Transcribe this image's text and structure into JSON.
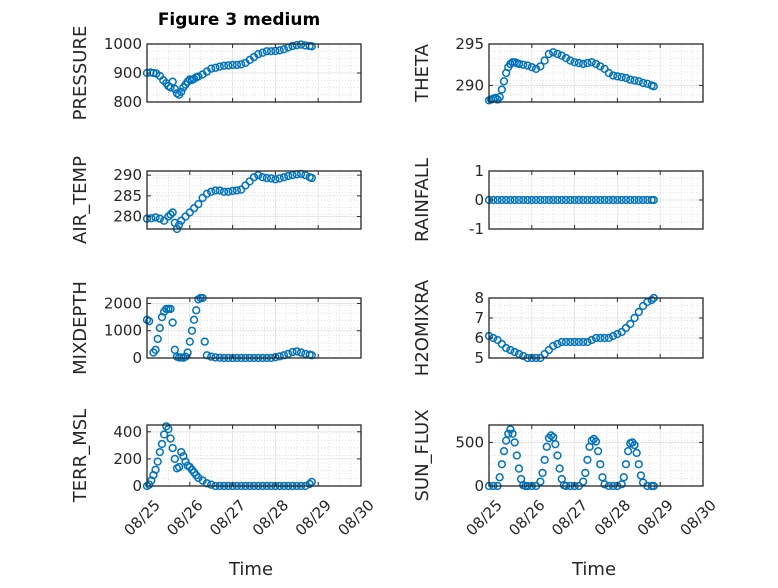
{
  "figure": {
    "title": "Figure 3 medium",
    "xlabel": "Time",
    "marker_color": "#0072BD"
  },
  "chart_data": [
    {
      "type": "scatter",
      "name": "PRESSURE",
      "ylabel": "PRESSURE",
      "ylim": [
        800,
        1000
      ],
      "yticks": [
        800,
        900,
        1000
      ],
      "ytick_labels": [
        "800",
        "900",
        "1000"
      ],
      "xlim": [
        0,
        5
      ],
      "xticks": [
        0,
        1,
        2,
        3,
        4,
        5
      ],
      "xtick_labels": [
        "08/25",
        "08/26",
        "08/27",
        "08/28",
        "08/29",
        "08/30"
      ],
      "grid": true,
      "x": [
        0.0,
        0.08,
        0.15,
        0.22,
        0.3,
        0.38,
        0.45,
        0.5,
        0.55,
        0.6,
        0.65,
        0.7,
        0.75,
        0.8,
        0.85,
        0.9,
        0.95,
        1.0,
        1.05,
        1.1,
        1.15,
        1.2,
        1.3,
        1.4,
        1.5,
        1.6,
        1.7,
        1.8,
        1.9,
        2.0,
        2.1,
        2.2,
        2.3,
        2.4,
        2.5,
        2.6,
        2.7,
        2.8,
        2.9,
        3.0,
        3.1,
        3.2,
        3.3,
        3.4,
        3.5,
        3.6,
        3.7,
        3.8,
        3.85
      ],
      "y": [
        900,
        902,
        900,
        898,
        890,
        875,
        865,
        855,
        850,
        870,
        845,
        830,
        825,
        835,
        850,
        860,
        870,
        878,
        876,
        880,
        885,
        888,
        895,
        905,
        915,
        918,
        922,
        925,
        926,
        928,
        928,
        930,
        935,
        945,
        955,
        965,
        970,
        975,
        975,
        976,
        978,
        982,
        988,
        993,
        996,
        998,
        995,
        993,
        992
      ]
    },
    {
      "type": "scatter",
      "name": "THETA",
      "ylabel": "THETA",
      "ylim": [
        288,
        295
      ],
      "yticks": [
        290,
        295
      ],
      "ytick_labels": [
        "290",
        "295"
      ],
      "xlim": [
        0,
        5
      ],
      "xticks": [
        0,
        1,
        2,
        3,
        4,
        5
      ],
      "xtick_labels": [
        "08/25",
        "08/26",
        "08/27",
        "08/28",
        "08/29",
        "08/30"
      ],
      "grid": true,
      "x": [
        0.0,
        0.05,
        0.1,
        0.15,
        0.2,
        0.25,
        0.3,
        0.35,
        0.4,
        0.45,
        0.5,
        0.55,
        0.6,
        0.65,
        0.7,
        0.8,
        0.9,
        1.0,
        1.1,
        1.2,
        1.3,
        1.4,
        1.5,
        1.6,
        1.7,
        1.8,
        1.9,
        2.0,
        2.1,
        2.2,
        2.3,
        2.4,
        2.5,
        2.6,
        2.7,
        2.8,
        2.9,
        3.0,
        3.1,
        3.2,
        3.3,
        3.4,
        3.5,
        3.6,
        3.7,
        3.8,
        3.85
      ],
      "y": [
        288.2,
        288.3,
        288.4,
        288.5,
        288.3,
        288.6,
        289.5,
        290.5,
        291.5,
        292.2,
        292.6,
        292.8,
        292.8,
        292.7,
        292.6,
        292.5,
        292.4,
        292.2,
        292.0,
        292.3,
        293.0,
        293.8,
        294.0,
        293.8,
        293.6,
        293.3,
        293.0,
        292.8,
        292.7,
        292.6,
        292.7,
        292.8,
        292.6,
        292.3,
        292.0,
        291.5,
        291.2,
        291.1,
        291.0,
        290.9,
        290.7,
        290.6,
        290.5,
        290.3,
        290.2,
        290.0,
        289.9
      ]
    },
    {
      "type": "scatter",
      "name": "AIR_TEMP",
      "ylabel": "AIR_TEMP",
      "ylim": [
        277,
        291
      ],
      "yticks": [
        280,
        285,
        290
      ],
      "ytick_labels": [
        "280",
        "285",
        "290"
      ],
      "xlim": [
        0,
        5
      ],
      "xticks": [
        0,
        1,
        2,
        3,
        4,
        5
      ],
      "xtick_labels": [
        "08/25",
        "08/26",
        "08/27",
        "08/28",
        "08/29",
        "08/30"
      ],
      "grid": true,
      "x": [
        0.0,
        0.1,
        0.2,
        0.3,
        0.4,
        0.5,
        0.55,
        0.6,
        0.65,
        0.7,
        0.75,
        0.8,
        0.9,
        1.0,
        1.1,
        1.2,
        1.3,
        1.4,
        1.5,
        1.6,
        1.7,
        1.8,
        1.9,
        2.0,
        2.1,
        2.2,
        2.3,
        2.4,
        2.5,
        2.6,
        2.7,
        2.8,
        2.9,
        3.0,
        3.1,
        3.2,
        3.3,
        3.4,
        3.5,
        3.6,
        3.7,
        3.8,
        3.85
      ],
      "y": [
        279.5,
        279.6,
        279.8,
        279.5,
        279.0,
        280.0,
        280.5,
        281.0,
        278.5,
        277.0,
        278.0,
        279.0,
        280.0,
        281.0,
        282.0,
        283.0,
        284.5,
        285.5,
        286.0,
        286.3,
        286.3,
        286.0,
        286.0,
        286.2,
        286.3,
        286.5,
        287.5,
        288.5,
        289.5,
        290.0,
        289.5,
        289.3,
        289.2,
        289.0,
        289.2,
        289.5,
        289.8,
        290.0,
        290.2,
        290.3,
        290.0,
        289.5,
        289.3
      ]
    },
    {
      "type": "scatter",
      "name": "RAINFALL",
      "ylabel": "RAINFALL",
      "ylim": [
        -1,
        1
      ],
      "yticks": [
        -1,
        0,
        1
      ],
      "ytick_labels": [
        "-1",
        "0",
        "1"
      ],
      "xlim": [
        0,
        5
      ],
      "xticks": [
        0,
        1,
        2,
        3,
        4,
        5
      ],
      "xtick_labels": [
        "08/25",
        "08/26",
        "08/27",
        "08/28",
        "08/29",
        "08/30"
      ],
      "grid": true,
      "x": [
        0.0,
        0.1,
        0.2,
        0.3,
        0.4,
        0.5,
        0.6,
        0.7,
        0.8,
        0.9,
        1.0,
        1.1,
        1.2,
        1.3,
        1.4,
        1.5,
        1.6,
        1.7,
        1.8,
        1.9,
        2.0,
        2.1,
        2.2,
        2.3,
        2.4,
        2.5,
        2.6,
        2.7,
        2.8,
        2.9,
        3.0,
        3.1,
        3.2,
        3.3,
        3.4,
        3.5,
        3.6,
        3.7,
        3.8,
        3.85
      ],
      "y": [
        0,
        0,
        0,
        0,
        0,
        0,
        0,
        0,
        0,
        0,
        0,
        0,
        0,
        0,
        0,
        0,
        0,
        0,
        0,
        0,
        0,
        0,
        0,
        0,
        0,
        0,
        0,
        0,
        0,
        0,
        0,
        0,
        0,
        0,
        0,
        0,
        0,
        0,
        0,
        0
      ]
    },
    {
      "type": "scatter",
      "name": "MIXDEPTH",
      "ylabel": "MIXDEPTH",
      "ylim": [
        0,
        2200
      ],
      "yticks": [
        0,
        1000,
        2000
      ],
      "ytick_labels": [
        "0",
        "1000",
        "2000"
      ],
      "xlim": [
        0,
        5
      ],
      "xticks": [
        0,
        1,
        2,
        3,
        4,
        5
      ],
      "xtick_labels": [
        "08/25",
        "08/26",
        "08/27",
        "08/28",
        "08/29",
        "08/30"
      ],
      "grid": true,
      "x": [
        0.0,
        0.05,
        0.15,
        0.2,
        0.25,
        0.3,
        0.35,
        0.4,
        0.45,
        0.5,
        0.55,
        0.6,
        0.65,
        0.7,
        0.75,
        0.8,
        0.85,
        0.9,
        0.95,
        1.0,
        1.05,
        1.1,
        1.15,
        1.2,
        1.25,
        1.3,
        1.35,
        1.4,
        1.5,
        1.6,
        1.7,
        1.8,
        1.9,
        2.0,
        2.1,
        2.2,
        2.3,
        2.4,
        2.5,
        2.6,
        2.7,
        2.8,
        2.9,
        3.0,
        3.1,
        3.2,
        3.3,
        3.4,
        3.5,
        3.6,
        3.7,
        3.8,
        3.85
      ],
      "y": [
        1400,
        1350,
        200,
        300,
        700,
        1100,
        1500,
        1700,
        1800,
        1800,
        1800,
        1300,
        300,
        50,
        20,
        20,
        10,
        50,
        200,
        600,
        1000,
        1400,
        1750,
        2150,
        2200,
        2200,
        600,
        100,
        50,
        20,
        10,
        0,
        0,
        0,
        0,
        0,
        0,
        0,
        0,
        0,
        0,
        0,
        0,
        30,
        60,
        100,
        150,
        220,
        240,
        200,
        150,
        120,
        100
      ]
    },
    {
      "type": "scatter",
      "name": "H2OMIXRA",
      "ylabel": "H2OMIXRA",
      "ylim": [
        5,
        8
      ],
      "yticks": [
        5,
        6,
        7,
        8
      ],
      "ytick_labels": [
        "5",
        "6",
        "7",
        "8"
      ],
      "xlim": [
        0,
        5
      ],
      "xticks": [
        0,
        1,
        2,
        3,
        4,
        5
      ],
      "xtick_labels": [
        "08/25",
        "08/26",
        "08/27",
        "08/28",
        "08/29",
        "08/30"
      ],
      "grid": true,
      "x": [
        0.0,
        0.1,
        0.2,
        0.3,
        0.4,
        0.5,
        0.6,
        0.7,
        0.8,
        0.9,
        1.0,
        1.1,
        1.2,
        1.3,
        1.4,
        1.5,
        1.6,
        1.7,
        1.8,
        1.9,
        2.0,
        2.1,
        2.2,
        2.3,
        2.4,
        2.5,
        2.6,
        2.7,
        2.8,
        2.9,
        3.0,
        3.1,
        3.2,
        3.3,
        3.4,
        3.5,
        3.6,
        3.7,
        3.8,
        3.85
      ],
      "y": [
        6.1,
        6.0,
        5.9,
        5.7,
        5.5,
        5.4,
        5.3,
        5.2,
        5.1,
        5.0,
        5.0,
        5.0,
        5.0,
        5.2,
        5.4,
        5.6,
        5.7,
        5.8,
        5.8,
        5.8,
        5.8,
        5.8,
        5.8,
        5.8,
        5.9,
        6.0,
        6.0,
        6.0,
        6.0,
        6.1,
        6.2,
        6.3,
        6.5,
        6.7,
        7.0,
        7.3,
        7.6,
        7.8,
        7.9,
        8.0
      ]
    },
    {
      "type": "scatter",
      "name": "TERR_MSL",
      "ylabel": "TERR_MSL",
      "ylim": [
        0,
        450
      ],
      "yticks": [
        0,
        200,
        400
      ],
      "ytick_labels": [
        "0",
        "200",
        "400"
      ],
      "xlim": [
        0,
        5
      ],
      "xticks": [
        0,
        1,
        2,
        3,
        4,
        5
      ],
      "xtick_labels": [
        "08/25",
        "08/26",
        "08/27",
        "08/28",
        "08/29",
        "08/30"
      ],
      "grid": true,
      "x": [
        0.0,
        0.05,
        0.1,
        0.15,
        0.2,
        0.25,
        0.3,
        0.35,
        0.4,
        0.45,
        0.5,
        0.55,
        0.6,
        0.65,
        0.7,
        0.75,
        0.8,
        0.85,
        0.9,
        0.95,
        1.0,
        1.05,
        1.1,
        1.15,
        1.2,
        1.3,
        1.4,
        1.5,
        1.6,
        1.7,
        1.8,
        1.9,
        2.0,
        2.1,
        2.2,
        2.3,
        2.4,
        2.5,
        2.6,
        2.7,
        2.8,
        2.9,
        3.0,
        3.1,
        3.2,
        3.3,
        3.4,
        3.5,
        3.6,
        3.7,
        3.8,
        3.85
      ],
      "y": [
        0,
        10,
        40,
        80,
        120,
        180,
        250,
        310,
        380,
        440,
        420,
        350,
        280,
        200,
        130,
        140,
        250,
        220,
        180,
        150,
        140,
        120,
        100,
        80,
        60,
        40,
        20,
        10,
        0,
        0,
        0,
        0,
        0,
        0,
        0,
        0,
        0,
        0,
        0,
        0,
        0,
        0,
        0,
        0,
        0,
        0,
        0,
        0,
        0,
        0,
        15,
        30
      ]
    },
    {
      "type": "scatter",
      "name": "SUN_FLUX",
      "ylabel": "SUN_FLUX",
      "ylim": [
        0,
        700
      ],
      "yticks": [
        0,
        500
      ],
      "ytick_labels": [
        "0",
        "500"
      ],
      "xlim": [
        0,
        5
      ],
      "xticks": [
        0,
        1,
        2,
        3,
        4,
        5
      ],
      "xtick_labels": [
        "08/25",
        "08/26",
        "08/27",
        "08/28",
        "08/29",
        "08/30"
      ],
      "grid": true,
      "x": [
        0.0,
        0.1,
        0.2,
        0.25,
        0.3,
        0.35,
        0.4,
        0.45,
        0.5,
        0.55,
        0.6,
        0.65,
        0.7,
        0.75,
        0.8,
        0.85,
        0.9,
        1.0,
        1.1,
        1.2,
        1.25,
        1.3,
        1.35,
        1.4,
        1.45,
        1.5,
        1.55,
        1.6,
        1.65,
        1.7,
        1.75,
        1.8,
        1.9,
        2.0,
        2.1,
        2.2,
        2.25,
        2.3,
        2.35,
        2.4,
        2.45,
        2.5,
        2.55,
        2.6,
        2.65,
        2.7,
        2.8,
        2.9,
        3.0,
        3.1,
        3.15,
        3.2,
        3.25,
        3.3,
        3.35,
        3.4,
        3.45,
        3.5,
        3.55,
        3.6,
        3.7,
        3.8,
        3.85
      ],
      "y": [
        0,
        0,
        0,
        100,
        250,
        400,
        520,
        600,
        650,
        600,
        500,
        350,
        200,
        80,
        10,
        0,
        0,
        0,
        0,
        50,
        150,
        300,
        450,
        550,
        580,
        560,
        480,
        350,
        200,
        80,
        10,
        0,
        0,
        0,
        0,
        50,
        150,
        300,
        450,
        520,
        540,
        510,
        400,
        250,
        100,
        20,
        0,
        0,
        0,
        20,
        100,
        250,
        400,
        490,
        500,
        470,
        380,
        250,
        120,
        40,
        0,
        0,
        0
      ]
    }
  ]
}
